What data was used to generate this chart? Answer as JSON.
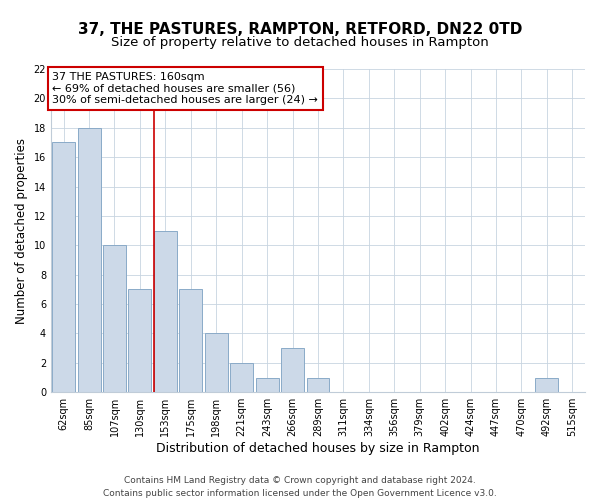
{
  "title": "37, THE PASTURES, RAMPTON, RETFORD, DN22 0TD",
  "subtitle": "Size of property relative to detached houses in Rampton",
  "xlabel": "Distribution of detached houses by size in Rampton",
  "ylabel": "Number of detached properties",
  "bar_labels": [
    "62sqm",
    "85sqm",
    "107sqm",
    "130sqm",
    "153sqm",
    "175sqm",
    "198sqm",
    "221sqm",
    "243sqm",
    "266sqm",
    "289sqm",
    "311sqm",
    "334sqm",
    "356sqm",
    "379sqm",
    "402sqm",
    "424sqm",
    "447sqm",
    "470sqm",
    "492sqm",
    "515sqm"
  ],
  "bar_values": [
    17,
    18,
    10,
    7,
    11,
    7,
    4,
    2,
    1,
    3,
    1,
    0,
    0,
    0,
    0,
    0,
    0,
    0,
    0,
    1,
    0
  ],
  "bar_color": "#ccd9e8",
  "bar_edge_color": "#8aaac8",
  "highlight_line_index": 4,
  "highlight_line_color": "#cc0000",
  "annotation_line1": "37 THE PASTURES: 160sqm",
  "annotation_line2": "← 69% of detached houses are smaller (56)",
  "annotation_line3": "30% of semi-detached houses are larger (24) →",
  "annotation_box_color": "#ffffff",
  "annotation_box_edge": "#cc0000",
  "ylim": [
    0,
    22
  ],
  "yticks": [
    0,
    2,
    4,
    6,
    8,
    10,
    12,
    14,
    16,
    18,
    20,
    22
  ],
  "footer1": "Contains HM Land Registry data © Crown copyright and database right 2024.",
  "footer2": "Contains public sector information licensed under the Open Government Licence v3.0.",
  "title_fontsize": 11,
  "subtitle_fontsize": 9.5,
  "xlabel_fontsize": 9,
  "ylabel_fontsize": 8.5,
  "tick_fontsize": 7,
  "annotation_fontsize": 8,
  "footer_fontsize": 6.5
}
